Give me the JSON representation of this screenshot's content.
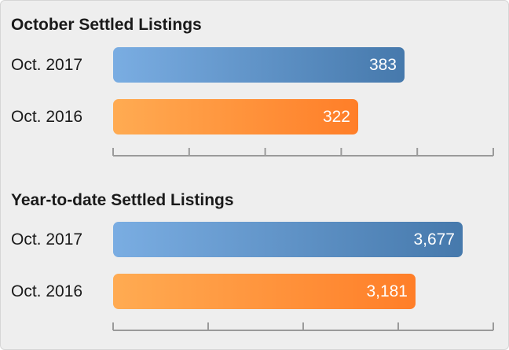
{
  "colors": {
    "panel_bg": "#eeeeee",
    "series_2017": "#5a8ec4",
    "series_2016": "#ff8c30",
    "value_text": "#ffffff",
    "axis": "#9a9a9a"
  },
  "chart_data": [
    {
      "type": "bar",
      "orientation": "horizontal",
      "title": "October Settled Listings",
      "categories": [
        "Oct. 2017",
        "Oct. 2016"
      ],
      "values": [
        383,
        322
      ],
      "value_labels": [
        "383",
        "322"
      ],
      "xlim": [
        0,
        500
      ],
      "tick_count": 5,
      "axis_tick_labels_shown": false
    },
    {
      "type": "bar",
      "orientation": "horizontal",
      "title": "Year-to-date Settled Listings",
      "categories": [
        "Oct. 2017",
        "Oct. 2016"
      ],
      "values": [
        3677,
        3181
      ],
      "value_labels": [
        "3,677",
        "3,181"
      ],
      "xlim": [
        0,
        4000
      ],
      "tick_count": 4,
      "axis_tick_labels_shown": false
    }
  ]
}
